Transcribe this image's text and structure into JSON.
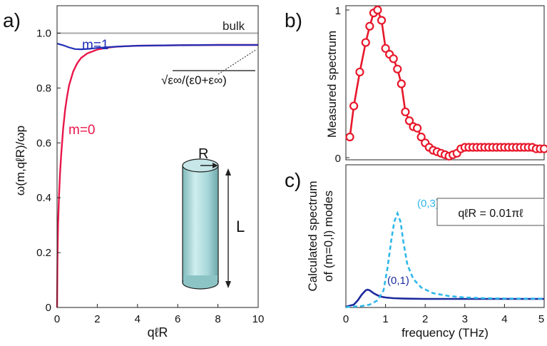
{
  "chart_data": [
    {
      "panel_label": "a)",
      "type": "line",
      "xlabel": "qℓR",
      "ylabel": "ω(m,qℓR)/ωp",
      "xlim": [
        0,
        10
      ],
      "ylim": [
        0,
        1.1
      ],
      "xticks": [
        "0",
        "2",
        "4",
        "6",
        "8",
        "10"
      ],
      "yticks": [
        "0",
        "0.2",
        "0.4",
        "0.6",
        "0.8",
        "1.0"
      ],
      "reference_line": {
        "label": "bulk",
        "y": 1.0,
        "color": "#aaaaaa"
      },
      "asymptote_label": "√ε∞/(ε0+ε∞)",
      "asymptote_value": 0.957,
      "inset_labels": {
        "radius": "R",
        "length": "L"
      },
      "series": [
        {
          "name": "m=0",
          "color": "#e8174a",
          "x": [
            0,
            0.02,
            0.05,
            0.1,
            0.15,
            0.2,
            0.3,
            0.4,
            0.5,
            0.6,
            0.8,
            1.0,
            1.2,
            1.5,
            2.0,
            2.5,
            3.0,
            4.0,
            5.0,
            6.0,
            8.0,
            10.0
          ],
          "y": [
            0,
            0.18,
            0.3,
            0.41,
            0.49,
            0.55,
            0.65,
            0.72,
            0.77,
            0.81,
            0.86,
            0.89,
            0.91,
            0.926,
            0.94,
            0.947,
            0.951,
            0.954,
            0.955,
            0.956,
            0.957,
            0.957
          ]
        },
        {
          "name": "m=1",
          "color": "#1f2fb8",
          "x": [
            0,
            0.3,
            0.6,
            0.9,
            1.2,
            1.6,
            2.0,
            2.5,
            3.0,
            4.0,
            6.0,
            8.0,
            10.0
          ],
          "y": [
            0.962,
            0.956,
            0.948,
            0.942,
            0.941,
            0.943,
            0.946,
            0.949,
            0.951,
            0.954,
            0.956,
            0.957,
            0.957
          ]
        }
      ]
    },
    {
      "panel_label": "b)",
      "type": "line",
      "ylabel": "Measured spectrum",
      "xlim": [
        0,
        5
      ],
      "ylim": [
        0,
        1
      ],
      "yticks": [
        "0",
        "1"
      ],
      "series": [
        {
          "color": "#e8172a",
          "x": [
            0.1,
            0.2,
            0.35,
            0.5,
            0.6,
            0.7,
            0.8,
            0.9,
            1.0,
            1.1,
            1.2,
            1.3,
            1.4,
            1.5,
            1.6,
            1.7,
            1.8,
            1.9,
            2.0,
            2.1,
            2.2,
            2.3,
            2.4,
            2.5,
            2.6,
            2.7,
            2.8,
            2.9,
            3.0,
            3.1,
            3.2,
            3.3,
            3.4,
            3.5,
            3.6,
            3.7,
            3.8,
            3.9,
            4.0,
            4.1,
            4.2,
            4.3,
            4.4,
            4.5,
            4.6,
            4.7,
            4.8,
            4.9,
            5.0
          ],
          "y": [
            0.14,
            0.35,
            0.58,
            0.78,
            0.89,
            0.98,
            1.0,
            0.93,
            0.74,
            0.7,
            0.67,
            0.6,
            0.5,
            0.31,
            0.25,
            0.21,
            0.2,
            0.14,
            0.1,
            0.07,
            0.05,
            0.04,
            0.03,
            0.02,
            0.01,
            0.02,
            0.03,
            0.06,
            0.07,
            0.07,
            0.07,
            0.07,
            0.07,
            0.07,
            0.07,
            0.07,
            0.07,
            0.07,
            0.07,
            0.07,
            0.07,
            0.07,
            0.07,
            0.07,
            0.07,
            0.07,
            0.06,
            0.06,
            0.06
          ]
        }
      ]
    },
    {
      "panel_label": "c)",
      "type": "line",
      "xlabel": "frequency (THz)",
      "ylabel_line1": "Calculated spectrum",
      "ylabel_line2": "of  (m=0,l) modes",
      "xlim": [
        0,
        5
      ],
      "ylim": [
        0,
        1
      ],
      "xticks": [
        "0",
        "1",
        "2",
        "3",
        "4",
        "5"
      ],
      "annotation": "qℓR = 0.01πℓ",
      "series": [
        {
          "label": "(0,1)",
          "color": "#1c2a9c",
          "style": "solid",
          "x": [
            0,
            0.2,
            0.3,
            0.4,
            0.5,
            0.55,
            0.6,
            0.7,
            0.8,
            0.9,
            1.0,
            1.2,
            1.5,
            2.0,
            3.0,
            4.0,
            5.0
          ],
          "y": [
            0.005,
            0.02,
            0.05,
            0.09,
            0.12,
            0.125,
            0.12,
            0.1,
            0.085,
            0.075,
            0.07,
            0.065,
            0.062,
            0.06,
            0.06,
            0.06,
            0.06
          ]
        },
        {
          "label": "(0,3)",
          "color": "#2fb8ea",
          "style": "dashed",
          "x": [
            0,
            0.4,
            0.6,
            0.8,
            0.95,
            1.05,
            1.15,
            1.22,
            1.3,
            1.38,
            1.45,
            1.55,
            1.7,
            1.9,
            2.2,
            2.6,
            3.0,
            3.5,
            4.0,
            4.5,
            5.0
          ],
          "y": [
            0.003,
            0.01,
            0.02,
            0.05,
            0.12,
            0.28,
            0.48,
            0.6,
            0.66,
            0.6,
            0.46,
            0.3,
            0.2,
            0.14,
            0.1,
            0.08,
            0.07,
            0.065,
            0.063,
            0.062,
            0.062
          ]
        }
      ]
    }
  ]
}
